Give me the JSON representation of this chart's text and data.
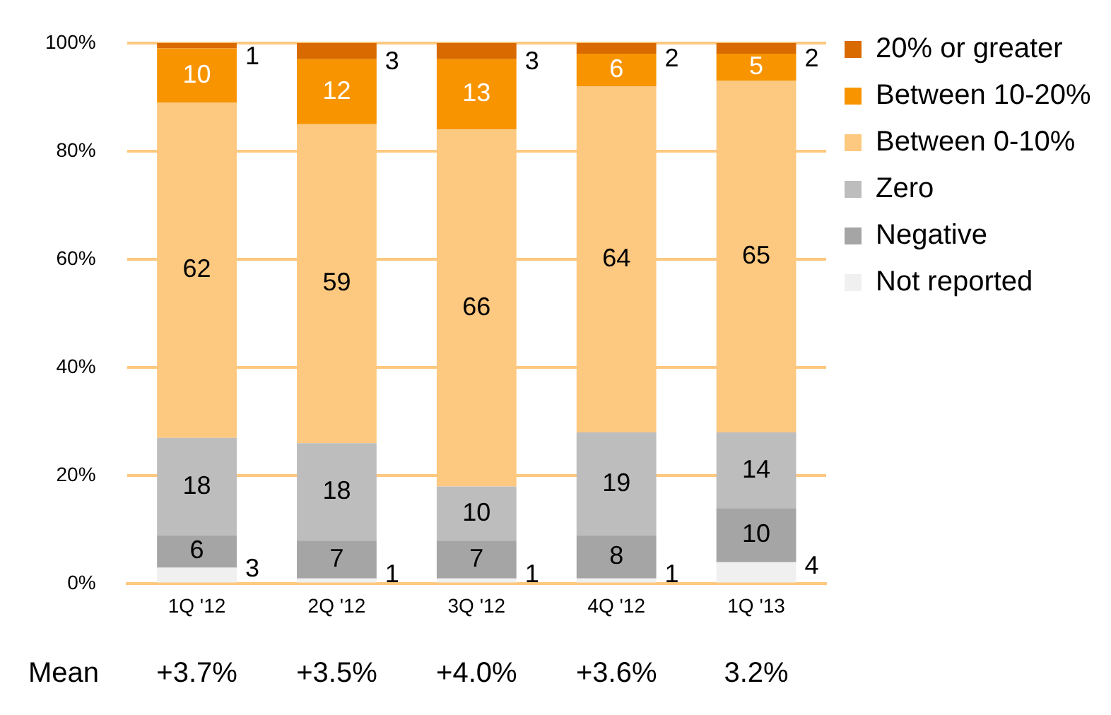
{
  "chart_data": {
    "type": "bar",
    "stacked": true,
    "categories": [
      "1Q '12",
      "2Q '12",
      "3Q '12",
      "4Q '12",
      "1Q '13"
    ],
    "series": [
      {
        "name": "Not reported",
        "color": "#f0f0f0",
        "values": [
          3,
          1,
          1,
          1,
          4
        ]
      },
      {
        "name": "Negative",
        "color": "#a5a5a5",
        "values": [
          6,
          7,
          7,
          8,
          10
        ]
      },
      {
        "name": "Zero",
        "color": "#bdbdbd",
        "values": [
          18,
          18,
          10,
          19,
          14
        ]
      },
      {
        "name": "Between 0-10%",
        "color": "#fdc87f",
        "values": [
          62,
          59,
          66,
          64,
          65
        ]
      },
      {
        "name": "Between 10-20%",
        "color": "#f79400",
        "values": [
          10,
          12,
          13,
          6,
          5
        ]
      },
      {
        "name": "20% or greater",
        "color": "#d96a00",
        "values": [
          1,
          3,
          3,
          2,
          2
        ]
      }
    ],
    "ylim": [
      0,
      100
    ],
    "yticks": [
      {
        "value": 0,
        "label": "0%"
      },
      {
        "value": 20,
        "label": "20%"
      },
      {
        "value": 40,
        "label": "40%"
      },
      {
        "value": 60,
        "label": "60%"
      },
      {
        "value": 80,
        "label": "80%"
      },
      {
        "value": 100,
        "label": "100%"
      }
    ],
    "grid": "y",
    "legend": "top right",
    "data_labels": true,
    "annotations": [
      "Mean",
      "+3.7%",
      "+3.5%",
      "+4.0%",
      "+3.6%",
      "3.2%"
    ]
  }
}
